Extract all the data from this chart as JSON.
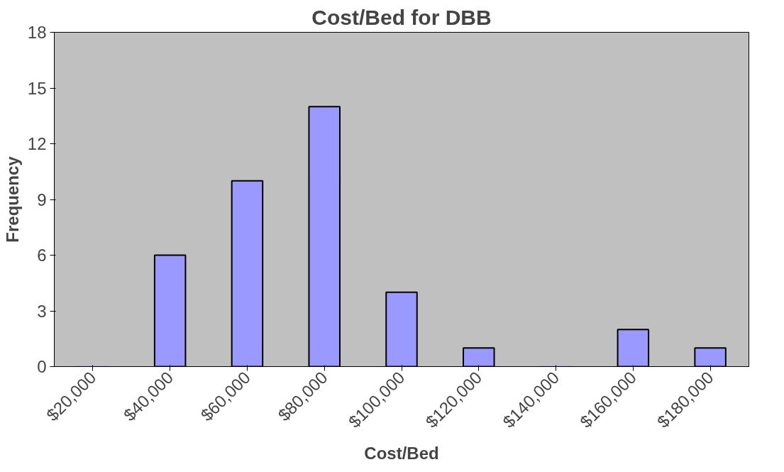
{
  "chart_data": {
    "type": "bar",
    "title": "Cost/Bed for DBB",
    "xlabel": "Cost/Bed",
    "ylabel": "Frequency",
    "categories": [
      "$20,000",
      "$40,000",
      "$60,000",
      "$80,000",
      "$100,000",
      "$120,000",
      "$140,000",
      "$160,000",
      "$180,000"
    ],
    "series": [
      {
        "color": "#9999ff",
        "values": [
          0,
          6,
          10,
          14,
          4,
          1,
          0,
          2,
          1
        ]
      }
    ],
    "ylim": [
      0,
      18
    ],
    "yticks": [
      0,
      3,
      6,
      9,
      12,
      15,
      18
    ],
    "grid": false
  }
}
